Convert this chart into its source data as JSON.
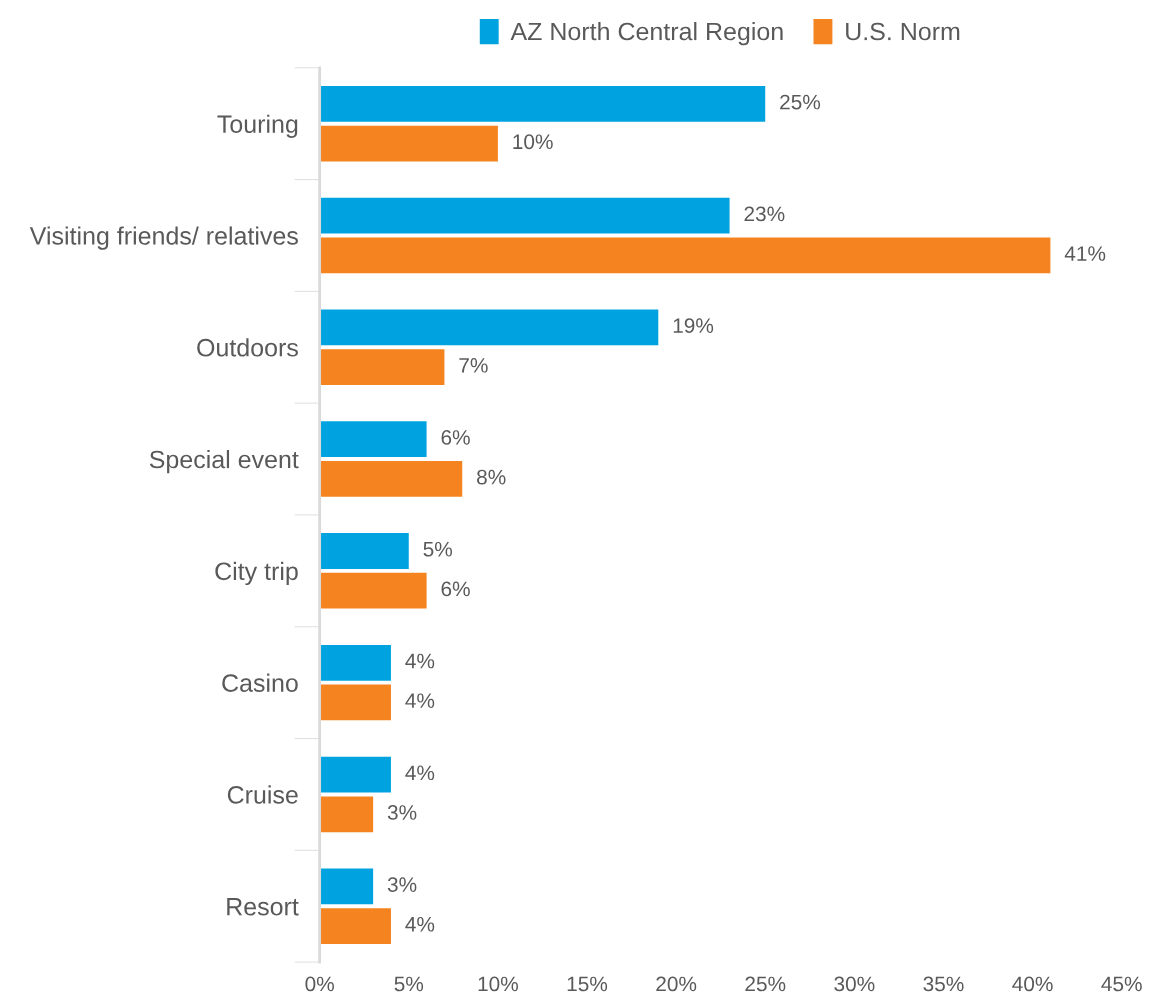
{
  "chart_data": {
    "type": "bar",
    "orientation": "horizontal",
    "categories": [
      "Touring",
      "Visiting friends/ relatives",
      "Outdoors",
      "Special event",
      "City trip",
      "Casino",
      "Cruise",
      "Resort"
    ],
    "series": [
      {
        "name": "AZ North Central Region",
        "color": "#00a3e0",
        "values": [
          25,
          23,
          19,
          6,
          5,
          4,
          4,
          3
        ],
        "value_labels": [
          "25%",
          "23%",
          "19%",
          "6%",
          "5%",
          "4%",
          "4%",
          "3%"
        ]
      },
      {
        "name": "U.S. Norm",
        "color": "#f5831f",
        "values": [
          10,
          41,
          7,
          8,
          6,
          4,
          3,
          4
        ],
        "value_labels": [
          "10%",
          "41%",
          "7%",
          "8%",
          "6%",
          "4%",
          "3%",
          "4%"
        ]
      }
    ],
    "xlim": [
      0,
      45
    ],
    "xticks": [
      {
        "value": 0,
        "label": "0%"
      },
      {
        "value": 5,
        "label": "5%"
      },
      {
        "value": 10,
        "label": "10%"
      },
      {
        "value": 15,
        "label": "15%"
      },
      {
        "value": 20,
        "label": "20%"
      },
      {
        "value": 25,
        "label": "25%"
      },
      {
        "value": 30,
        "label": "30%"
      },
      {
        "value": 35,
        "label": "35%"
      },
      {
        "value": 40,
        "label": "40%"
      },
      {
        "value": 45,
        "label": "45%"
      }
    ],
    "grid": false,
    "legend": "top"
  }
}
